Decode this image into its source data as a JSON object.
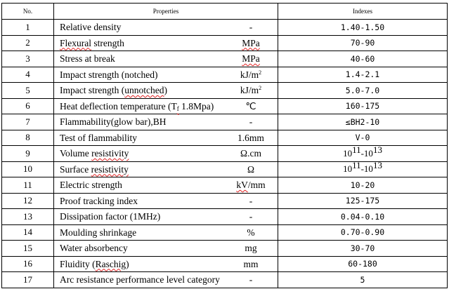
{
  "headers": {
    "no": "No.",
    "properties": "Properties",
    "indexes": "Indexes"
  },
  "rows": [
    {
      "no": "1",
      "name": [
        {
          "t": "Relative density"
        }
      ],
      "unit": [
        {
          "t": "-"
        }
      ],
      "index": [
        {
          "t": "1.40-1.50"
        }
      ]
    },
    {
      "no": "2",
      "name": [
        {
          "t": "Flexural",
          "sq": true
        },
        {
          "t": " strength"
        }
      ],
      "unit": [
        {
          "t": "MPa",
          "sq": true
        }
      ],
      "index": [
        {
          "t": "70-90"
        }
      ]
    },
    {
      "no": "3",
      "name": [
        {
          "t": "Stress at break"
        }
      ],
      "unit": [
        {
          "t": "MPa",
          "sq": true
        }
      ],
      "index": [
        {
          "t": "40-60"
        }
      ]
    },
    {
      "no": "4",
      "name": [
        {
          "t": "Impact strength (notched)"
        }
      ],
      "unit": [
        {
          "t": "kJ/m"
        },
        {
          "t": "2",
          "sup": true
        }
      ],
      "index": [
        {
          "t": "1.4-2.1"
        }
      ]
    },
    {
      "no": "5",
      "name": [
        {
          "t": "Impact strength ("
        },
        {
          "t": "unnotched",
          "sq": true
        },
        {
          "t": ")"
        }
      ],
      "unit": [
        {
          "t": "kJ/m"
        },
        {
          "t": "2",
          "sup": true
        }
      ],
      "index": [
        {
          "t": "5.0-7.0"
        }
      ]
    },
    {
      "no": "6",
      "name": [
        {
          "t": "Heat deflection temperature (T"
        },
        {
          "t": "f",
          "sub": true,
          "sq": true
        },
        {
          "t": " 1.8Mpa)"
        }
      ],
      "unit": [
        {
          "t": "℃"
        }
      ],
      "index": [
        {
          "t": "160-175"
        }
      ]
    },
    {
      "no": "7",
      "name": [
        {
          "t": "Flammability(glow bar),BH"
        }
      ],
      "unit": [
        {
          "t": "-"
        }
      ],
      "index": [
        {
          "t": "≤BH2-10"
        }
      ]
    },
    {
      "no": "8",
      "name": [
        {
          "t": "Test of flammability"
        }
      ],
      "unit": [
        {
          "t": "1.6mm"
        }
      ],
      "index": [
        {
          "t": "V-0"
        }
      ]
    },
    {
      "no": "9",
      "name": [
        {
          "t": "Volume "
        },
        {
          "t": "resistivity",
          "sq": true
        }
      ],
      "unit": [
        {
          "t": "Ω.cm"
        }
      ],
      "index": [
        {
          "t": "10",
          "sci": true
        },
        {
          "t": "11",
          "sup": true
        },
        {
          "t": "-10",
          "sci": true
        },
        {
          "t": "13",
          "sup": true
        }
      ]
    },
    {
      "no": "10",
      "name": [
        {
          "t": "Surface "
        },
        {
          "t": "resistivity",
          "sq": true
        }
      ],
      "unit": [
        {
          "t": "Ω"
        }
      ],
      "index": [
        {
          "t": "10",
          "sci": true
        },
        {
          "t": "11",
          "sup": true
        },
        {
          "t": "-10",
          "sci": true
        },
        {
          "t": "13",
          "sup": true
        }
      ]
    },
    {
      "no": "11",
      "name": [
        {
          "t": "Electric strength"
        }
      ],
      "unit": [
        {
          "t": "kV",
          "sq": true
        },
        {
          "t": "/mm"
        }
      ],
      "index": [
        {
          "t": "10-20"
        }
      ]
    },
    {
      "no": "12",
      "name": [
        {
          "t": "Proof tracking index"
        }
      ],
      "unit": [
        {
          "t": "-"
        }
      ],
      "index": [
        {
          "t": "125-175"
        }
      ]
    },
    {
      "no": "13",
      "name": [
        {
          "t": "Dissipation factor (1MHz)"
        }
      ],
      "unit": [
        {
          "t": "-"
        }
      ],
      "index": [
        {
          "t": "0.04-0.10"
        }
      ]
    },
    {
      "no": "14",
      "name": [
        {
          "t": "Moulding shrinkage"
        }
      ],
      "unit": [
        {
          "t": "%"
        }
      ],
      "index": [
        {
          "t": "0.70-0.90"
        }
      ]
    },
    {
      "no": "15",
      "name": [
        {
          "t": "Water absorbency"
        }
      ],
      "unit": [
        {
          "t": "mg"
        }
      ],
      "index": [
        {
          "t": "30-70"
        }
      ]
    },
    {
      "no": "16",
      "name": [
        {
          "t": "Fluidity ("
        },
        {
          "t": "Raschig",
          "sq": true
        },
        {
          "t": ")"
        }
      ],
      "unit": [
        {
          "t": "mm"
        }
      ],
      "index": [
        {
          "t": "60-180"
        }
      ]
    },
    {
      "no": "17",
      "name": [
        {
          "t": "Arc resistance performance level category"
        }
      ],
      "unit": [
        {
          "t": "-"
        }
      ],
      "index": [
        {
          "t": "5"
        }
      ]
    }
  ]
}
